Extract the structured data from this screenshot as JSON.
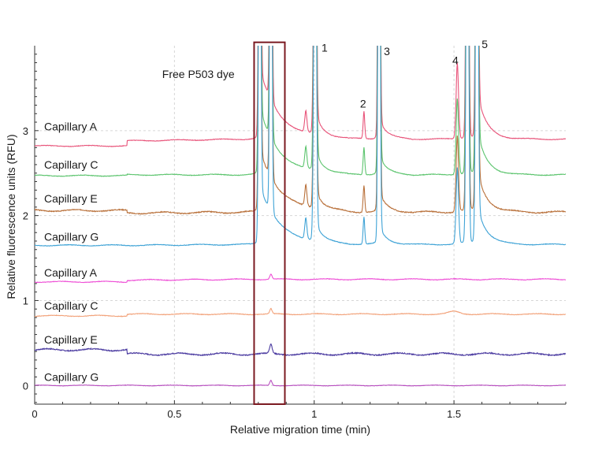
{
  "chart_data": {
    "type": "line",
    "title": "",
    "xlabel": "Relative migration time (min)",
    "ylabel": "Relative fluorescence units (RFU)",
    "xlim": [
      0,
      1.9
    ],
    "ylim": [
      -0.22,
      4.0
    ],
    "x_ticks": [
      0,
      0.5,
      1,
      1.5
    ],
    "x_tick_labels": [
      "0",
      "0.5",
      "1",
      "1.5"
    ],
    "y_ticks": [
      0,
      1,
      2,
      3
    ],
    "y_tick_labels": [
      "0",
      "1",
      "2",
      "3"
    ],
    "grid": true,
    "trace_labels": [
      {
        "text": "Capillary A",
        "y": 3.05
      },
      {
        "text": "Capillary C",
        "y": 2.6
      },
      {
        "text": "Capillary E",
        "y": 2.2
      },
      {
        "text": "Capillary G",
        "y": 1.75
      },
      {
        "text": "Capillary A",
        "y": 1.33
      },
      {
        "text": "Capillary C",
        "y": 0.94
      },
      {
        "text": "Capillary E",
        "y": 0.54
      },
      {
        "text": "Capillary G",
        "y": 0.1
      }
    ],
    "annotations": [
      {
        "text": "Free P503 dye",
        "x": 0.715,
        "y": 3.62
      },
      {
        "text": "1",
        "x": 1.037,
        "y": 3.93
      },
      {
        "text": "2",
        "x": 1.175,
        "y": 3.27
      },
      {
        "text": "3",
        "x": 1.26,
        "y": 3.89
      },
      {
        "text": "4",
        "x": 1.505,
        "y": 3.78
      },
      {
        "text": "5",
        "x": 1.61,
        "y": 3.97
      }
    ],
    "highlight_box": {
      "x0": 0.785,
      "x1": 0.895,
      "y0": -0.22,
      "y1": 4.04,
      "color": "#7b1a22"
    },
    "series": [
      {
        "color": "#e8547a",
        "baseline": 2.9,
        "start": 2.82,
        "step_x": 0.33,
        "step_to": 2.88,
        "kind": "sample",
        "wiggle": 0.006
      },
      {
        "color": "#5cc46e",
        "baseline": 2.48,
        "start": 2.47,
        "step_x": 0.33,
        "step_to": 2.48,
        "kind": "sample",
        "wiggle": 0.006
      },
      {
        "color": "#b9713b",
        "baseline": 2.04,
        "start": 2.06,
        "step_x": 0.33,
        "step_to": 2.03,
        "kind": "sample",
        "wiggle": 0.01
      },
      {
        "color": "#3fa3d6",
        "baseline": 1.66,
        "start": 1.65,
        "step_x": 0.33,
        "step_to": 1.65,
        "kind": "sample",
        "wiggle": 0.006
      },
      {
        "color": "#ee4fd6",
        "baseline": 1.25,
        "start": 1.22,
        "step_x": 0.33,
        "step_to": 1.24,
        "kind": "blank",
        "wiggle": 0.006
      },
      {
        "color": "#f2a27a",
        "baseline": 0.84,
        "start": 0.82,
        "step_x": 0.33,
        "step_to": 0.84,
        "kind": "blank",
        "wiggle": 0.006
      },
      {
        "color": "#4a3aa0",
        "baseline": 0.37,
        "start": 0.42,
        "step_x": 0.33,
        "step_to": 0.37,
        "kind": "blank",
        "wiggle": 0.012
      },
      {
        "color": "#b84fc0",
        "baseline": 0.0,
        "start": 0.0,
        "step_x": 0.33,
        "step_to": 0.0,
        "kind": "blank",
        "wiggle": 0.004
      }
    ]
  }
}
